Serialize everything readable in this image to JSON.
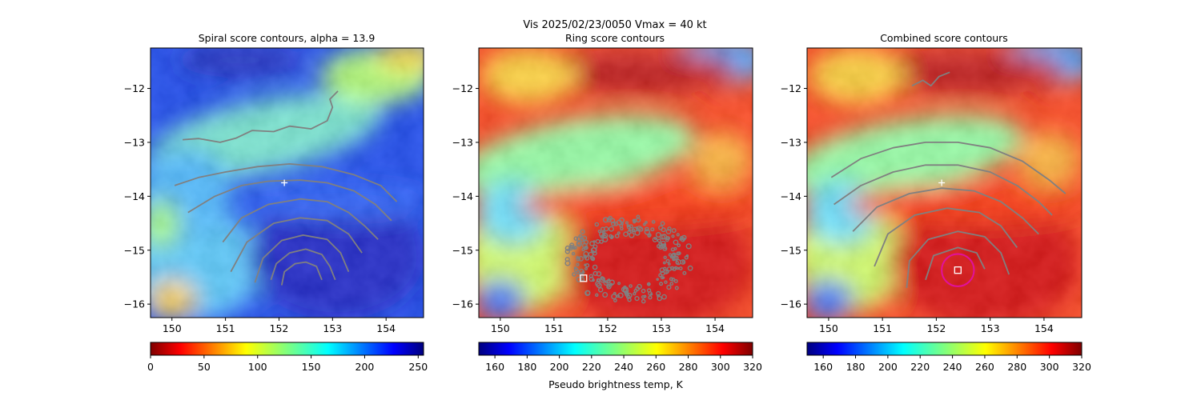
{
  "figure": {
    "suptitle_line1": "Vis  2025/02/23/0050    Vmax = 40 kt"
  },
  "chart_data": [
    {
      "type": "heatmap",
      "title": "Spiral score contours, alpha = 13.9",
      "xlim": [
        149.6,
        154.7
      ],
      "ylim": [
        -16.25,
        -11.25
      ],
      "x_ticks": [
        150,
        151,
        152,
        153,
        154
      ],
      "y_ticks": [
        -12,
        -13,
        -14,
        -15,
        -16
      ],
      "colorbar": {
        "range": [
          0,
          255
        ],
        "ticks": [
          0,
          50,
          100,
          150,
          200,
          250
        ],
        "colormap": "jet_reversed",
        "label": ""
      },
      "contour_color": "#808080",
      "center_marker": {
        "symbol": "+",
        "color": "#ffffff",
        "lon": 152.1,
        "lat": -13.75
      },
      "contours": [
        [
          [
            150.2,
            -12.95
          ],
          [
            150.5,
            -12.93
          ],
          [
            150.9,
            -13.0
          ],
          [
            151.2,
            -12.92
          ],
          [
            151.5,
            -12.78
          ],
          [
            151.9,
            -12.8
          ],
          [
            152.2,
            -12.7
          ],
          [
            152.6,
            -12.75
          ],
          [
            152.9,
            -12.6
          ],
          [
            153.0,
            -12.35
          ],
          [
            152.95,
            -12.2
          ],
          [
            153.1,
            -12.05
          ]
        ],
        [
          [
            150.05,
            -13.8
          ],
          [
            150.5,
            -13.65
          ],
          [
            151.0,
            -13.55
          ],
          [
            151.6,
            -13.45
          ],
          [
            152.2,
            -13.4
          ],
          [
            152.8,
            -13.45
          ],
          [
            153.4,
            -13.6
          ],
          [
            153.9,
            -13.8
          ],
          [
            154.2,
            -14.1
          ]
        ],
        [
          [
            150.3,
            -14.3
          ],
          [
            150.8,
            -14.0
          ],
          [
            151.3,
            -13.8
          ],
          [
            151.8,
            -13.72
          ],
          [
            152.4,
            -13.7
          ],
          [
            152.9,
            -13.75
          ],
          [
            153.4,
            -13.9
          ],
          [
            153.8,
            -14.15
          ],
          [
            154.1,
            -14.45
          ]
        ],
        [
          [
            150.95,
            -14.85
          ],
          [
            151.3,
            -14.4
          ],
          [
            151.8,
            -14.15
          ],
          [
            152.4,
            -14.05
          ],
          [
            152.9,
            -14.1
          ],
          [
            153.3,
            -14.3
          ],
          [
            153.6,
            -14.55
          ],
          [
            153.85,
            -14.8
          ]
        ],
        [
          [
            151.1,
            -15.4
          ],
          [
            151.4,
            -14.85
          ],
          [
            151.9,
            -14.5
          ],
          [
            152.4,
            -14.4
          ],
          [
            152.9,
            -14.45
          ],
          [
            153.3,
            -14.7
          ],
          [
            153.55,
            -15.05
          ]
        ],
        [
          [
            151.55,
            -15.6
          ],
          [
            151.7,
            -15.15
          ],
          [
            152.05,
            -14.82
          ],
          [
            152.45,
            -14.72
          ],
          [
            152.9,
            -14.8
          ],
          [
            153.15,
            -15.05
          ],
          [
            153.3,
            -15.4
          ]
        ],
        [
          [
            151.85,
            -15.55
          ],
          [
            151.95,
            -15.25
          ],
          [
            152.2,
            -15.05
          ],
          [
            152.5,
            -14.98
          ],
          [
            152.8,
            -15.08
          ],
          [
            152.95,
            -15.3
          ],
          [
            153.05,
            -15.55
          ]
        ],
        [
          [
            152.05,
            -15.65
          ],
          [
            152.1,
            -15.4
          ],
          [
            152.3,
            -15.25
          ],
          [
            152.5,
            -15.22
          ],
          [
            152.7,
            -15.3
          ],
          [
            152.8,
            -15.55
          ]
        ]
      ]
    },
    {
      "type": "heatmap",
      "title": "Ring score contours",
      "xlim": [
        149.6,
        154.7
      ],
      "ylim": [
        -16.25,
        -11.25
      ],
      "x_ticks": [
        150,
        151,
        152,
        153,
        154
      ],
      "y_ticks": [
        -12,
        -13,
        -14,
        -15,
        -16
      ],
      "colorbar": {
        "range": [
          150,
          320
        ],
        "ticks": [
          160,
          180,
          200,
          220,
          240,
          260,
          280,
          300,
          320
        ],
        "colormap": "jet",
        "label": "Pseudo brightness temp, K"
      },
      "contour_color": "#808080",
      "square_marker": {
        "color": "#ffffff",
        "lon": 151.55,
        "lat": -15.52
      },
      "ring_region": {
        "lon_range": [
          151.2,
          153.6
        ],
        "lat_range": [
          -16.0,
          -14.35
        ]
      }
    },
    {
      "type": "heatmap",
      "title": "Combined score contours",
      "xlim": [
        149.6,
        154.7
      ],
      "ylim": [
        -16.25,
        -11.25
      ],
      "x_ticks": [
        150,
        151,
        152,
        153,
        154
      ],
      "y_ticks": [
        -12,
        -13,
        -14,
        -15,
        -16
      ],
      "colorbar": {
        "range": [
          150,
          320
        ],
        "ticks": [
          160,
          180,
          200,
          220,
          240,
          260,
          280,
          300,
          320
        ],
        "colormap": "jet",
        "label": ""
      },
      "contour_color": "#808080",
      "center_marker": {
        "symbol": "+",
        "color": "#ffffff",
        "lon": 152.1,
        "lat": -13.75
      },
      "square_marker": {
        "color": "#ffffff",
        "lon": 152.4,
        "lat": -15.37
      },
      "circle": {
        "color": "#e0119d",
        "lon": 152.4,
        "lat": -15.37,
        "radius_deg": 0.3
      },
      "contours": [
        [
          [
            151.55,
            -11.95
          ],
          [
            151.75,
            -11.85
          ],
          [
            151.9,
            -11.95
          ],
          [
            152.05,
            -11.78
          ],
          [
            152.25,
            -11.7
          ]
        ],
        [
          [
            150.05,
            -13.65
          ],
          [
            150.6,
            -13.3
          ],
          [
            151.2,
            -13.1
          ],
          [
            151.8,
            -13.0
          ],
          [
            152.4,
            -13.0
          ],
          [
            153.0,
            -13.1
          ],
          [
            153.6,
            -13.35
          ],
          [
            154.1,
            -13.7
          ],
          [
            154.4,
            -13.95
          ]
        ],
        [
          [
            150.1,
            -14.15
          ],
          [
            150.6,
            -13.8
          ],
          [
            151.2,
            -13.55
          ],
          [
            151.8,
            -13.42
          ],
          [
            152.4,
            -13.42
          ],
          [
            153.0,
            -13.55
          ],
          [
            153.5,
            -13.8
          ],
          [
            153.9,
            -14.1
          ],
          [
            154.15,
            -14.35
          ]
        ],
        [
          [
            150.45,
            -14.65
          ],
          [
            150.9,
            -14.2
          ],
          [
            151.5,
            -13.95
          ],
          [
            152.1,
            -13.85
          ],
          [
            152.7,
            -13.9
          ],
          [
            153.2,
            -14.1
          ],
          [
            153.6,
            -14.4
          ],
          [
            153.9,
            -14.7
          ]
        ],
        [
          [
            150.85,
            -15.3
          ],
          [
            151.1,
            -14.7
          ],
          [
            151.6,
            -14.35
          ],
          [
            152.2,
            -14.22
          ],
          [
            152.8,
            -14.3
          ],
          [
            153.2,
            -14.55
          ],
          [
            153.5,
            -14.95
          ]
        ],
        [
          [
            151.45,
            -15.7
          ],
          [
            151.5,
            -15.2
          ],
          [
            151.85,
            -14.8
          ],
          [
            152.4,
            -14.65
          ],
          [
            152.9,
            -14.75
          ],
          [
            153.2,
            -15.05
          ],
          [
            153.35,
            -15.45
          ]
        ],
        [
          [
            151.8,
            -15.55
          ],
          [
            151.95,
            -15.1
          ],
          [
            152.4,
            -14.95
          ],
          [
            152.75,
            -15.05
          ],
          [
            152.9,
            -15.35
          ]
        ]
      ]
    }
  ]
}
